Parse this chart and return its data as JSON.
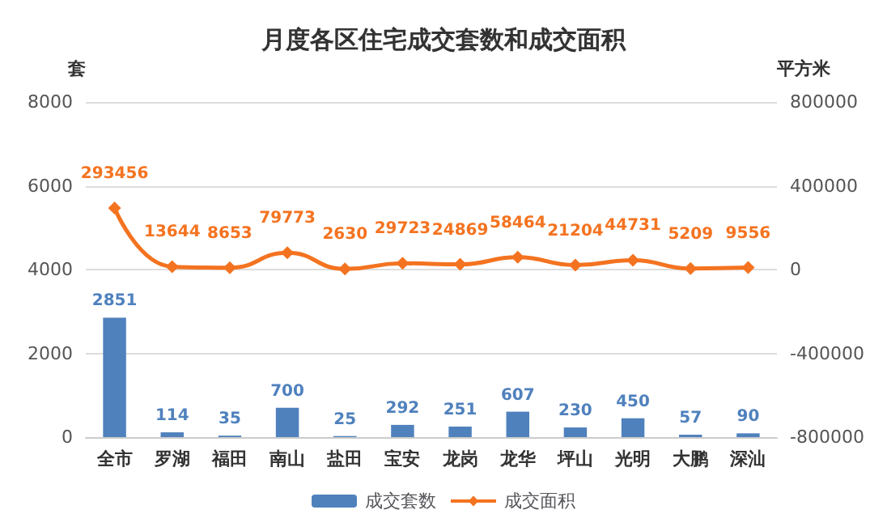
{
  "chart_data": {
    "type": "bar",
    "title": "月度各区住宅成交套数和成交面积",
    "ylabel": "套",
    "y2label": "平方米",
    "categories": [
      "全市",
      "罗湖",
      "福田",
      "南山",
      "盐田",
      "宝安",
      "龙岗",
      "龙华",
      "坪山",
      "光明",
      "大鹏",
      "深汕"
    ],
    "series": [
      {
        "name": "成交套数",
        "color": "#4f81bd",
        "values": [
          2851,
          114,
          35,
          700,
          25,
          292,
          251,
          607,
          230,
          450,
          57,
          90
        ]
      },
      {
        "name": "成交面积",
        "type": "line",
        "axis": "y2",
        "color": "#f47320",
        "marker": "diamond",
        "values": [
          293456,
          13644,
          8653,
          79773,
          2630,
          29723,
          24869,
          58464,
          21204,
          44731,
          5209,
          9556
        ]
      }
    ],
    "ylim": [
      0,
      8000
    ],
    "yticks": [
      0,
      2000,
      4000,
      6000,
      8000
    ],
    "y2lim": [
      -800000,
      800000
    ],
    "y2ticks": [
      -800000,
      -400000,
      0,
      400000,
      800000
    ],
    "data_labels": true,
    "grid": "y",
    "legend": "bottom"
  }
}
